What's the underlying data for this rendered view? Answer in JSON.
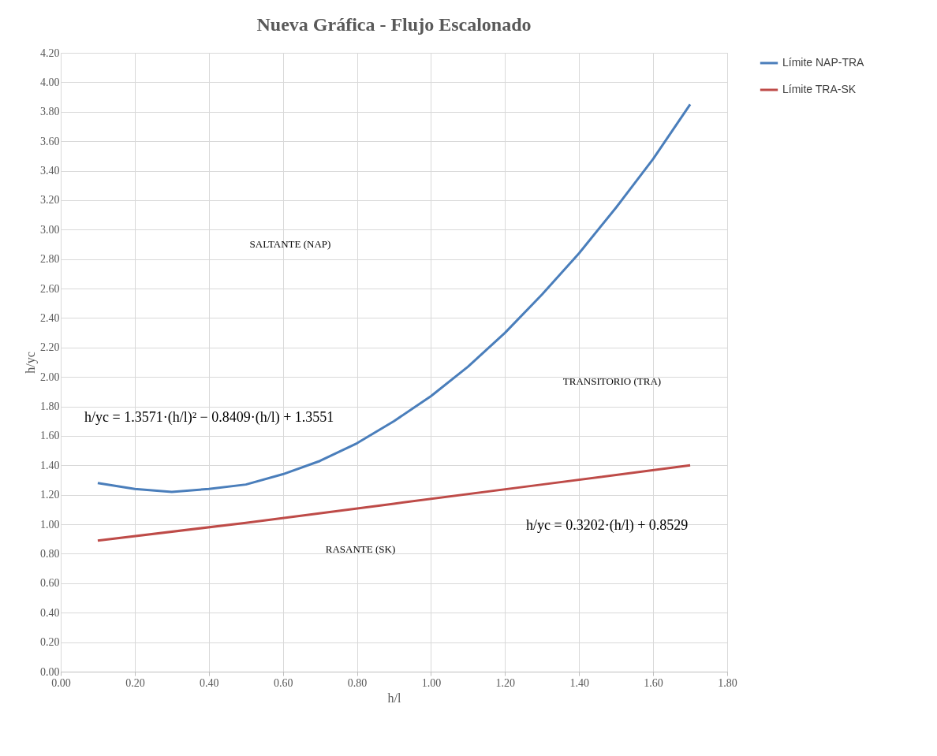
{
  "chart_data": {
    "type": "line",
    "title": "Nueva Gráfica - Flujo Escalonado",
    "xlabel": "h/l",
    "ylabel": "h/yc",
    "x": [
      0.1,
      0.2,
      0.3,
      0.4,
      0.5,
      0.6,
      0.7,
      0.8,
      0.9,
      1.0,
      1.1,
      1.2,
      1.3,
      1.4,
      1.5,
      1.6,
      1.7
    ],
    "series": [
      {
        "name": "Límite NAP-TRA",
        "color": "#4a7ebb",
        "values": [
          1.28,
          1.24,
          1.22,
          1.24,
          1.27,
          1.34,
          1.43,
          1.55,
          1.7,
          1.87,
          2.07,
          2.3,
          2.56,
          2.84,
          3.15,
          3.48,
          3.85
        ]
      },
      {
        "name": "Límite TRA-SK",
        "color": "#be4b48",
        "x": [
          0.1,
          0.5,
          0.9,
          1.3,
          1.7
        ],
        "values": [
          0.89,
          1.01,
          1.14,
          1.27,
          1.4
        ]
      }
    ],
    "xlim": [
      0,
      1.8
    ],
    "xticks": [
      {
        "value": 0,
        "label": "0.00"
      },
      {
        "value": 0.2,
        "label": "0.20"
      },
      {
        "value": 0.4,
        "label": "0.40"
      },
      {
        "value": 0.6,
        "label": "0.60"
      },
      {
        "value": 0.8,
        "label": "0.80"
      },
      {
        "value": 1.0,
        "label": "1.00"
      },
      {
        "value": 1.2,
        "label": "1.20"
      },
      {
        "value": 1.4,
        "label": "1.40"
      },
      {
        "value": 1.6,
        "label": "1.60"
      },
      {
        "value": 1.8,
        "label": "1.80"
      }
    ],
    "ylim": [
      0,
      4.2
    ],
    "yticks": [
      {
        "value": 0,
        "label": "0.00"
      },
      {
        "value": 0.2,
        "label": "0.20"
      },
      {
        "value": 0.4,
        "label": "0.40"
      },
      {
        "value": 0.6,
        "label": "0.60"
      },
      {
        "value": 0.8,
        "label": "0.80"
      },
      {
        "value": 1.0,
        "label": "1.00"
      },
      {
        "value": 1.2,
        "label": "1.20"
      },
      {
        "value": 1.4,
        "label": "1.40"
      },
      {
        "value": 1.6,
        "label": "1.60"
      },
      {
        "value": 1.8,
        "label": "1.80"
      },
      {
        "value": 2.0,
        "label": "2.00"
      },
      {
        "value": 2.2,
        "label": "2.20"
      },
      {
        "value": 2.4,
        "label": "2.40"
      },
      {
        "value": 2.6,
        "label": "2.60"
      },
      {
        "value": 2.8,
        "label": "2.80"
      },
      {
        "value": 3.0,
        "label": "3.00"
      },
      {
        "value": 3.2,
        "label": "3.20"
      },
      {
        "value": 3.4,
        "label": "3.40"
      },
      {
        "value": 3.6,
        "label": "3.60"
      },
      {
        "value": 3.8,
        "label": "3.80"
      },
      {
        "value": 4.0,
        "label": "4.00"
      },
      {
        "value": 4.2,
        "label": "4.20"
      }
    ],
    "grid": true,
    "legend": "right",
    "marker": "none",
    "line_style": "solid",
    "annotations": [
      "SALTANTE (NAP)",
      "TRANSITORIO (TRA)",
      "RASANTE (SK)",
      "h/yc = 1.3571·(h/l)² − 0.8409·(h/l) + 1.3551",
      "h/yc = 0.3202·(h/l) + 0.8529"
    ]
  }
}
